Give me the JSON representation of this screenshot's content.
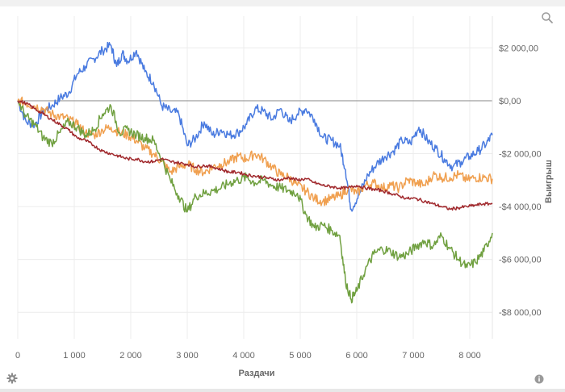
{
  "toolbar": {
    "zoom_icon": "magnifier-icon",
    "settings_icon": "gear-icon",
    "info_icon": "info-icon"
  },
  "chart_data": {
    "type": "line",
    "title": "",
    "xlabel": "Раздачи",
    "ylabel": "Выигрыш",
    "xlim": [
      0,
      8400
    ],
    "ylim": [
      -9000,
      3200
    ],
    "grid": true,
    "legend": "none",
    "x_ticks": [
      {
        "value": 0,
        "label": "0"
      },
      {
        "value": 1000,
        "label": "1 000"
      },
      {
        "value": 2000,
        "label": "2 000"
      },
      {
        "value": 3000,
        "label": "3 000"
      },
      {
        "value": 4000,
        "label": "4 000"
      },
      {
        "value": 5000,
        "label": "5 000"
      },
      {
        "value": 6000,
        "label": "6 000"
      },
      {
        "value": 7000,
        "label": "7 000"
      },
      {
        "value": 8000,
        "label": "8 000"
      }
    ],
    "y_ticks": [
      {
        "value": 2000,
        "label": "$2 000,00"
      },
      {
        "value": 0,
        "label": "$0,00"
      },
      {
        "value": -2000,
        "label": "-$2 000,00"
      },
      {
        "value": -4000,
        "label": "-$4 000,00"
      },
      {
        "value": -6000,
        "label": "-$6 000,00"
      },
      {
        "value": -8000,
        "label": "-$8 000,00"
      }
    ],
    "series": [
      {
        "color": "#4a7be0",
        "x": [
          0,
          150,
          300,
          450,
          600,
          750,
          900,
          1050,
          1200,
          1350,
          1500,
          1650,
          1750,
          1850,
          1950,
          2100,
          2250,
          2400,
          2550,
          2700,
          2850,
          3000,
          3150,
          3300,
          3450,
          3600,
          3750,
          3900,
          4050,
          4200,
          4350,
          4500,
          4650,
          4800,
          4950,
          5100,
          5250,
          5400,
          5550,
          5700,
          5800,
          5900,
          6050,
          6200,
          6350,
          6500,
          6650,
          6800,
          6950,
          7100,
          7250,
          7400,
          7550,
          7700,
          7850,
          8000,
          8150,
          8300,
          8400
        ],
        "y": [
          0,
          -800,
          -900,
          -400,
          -200,
          100,
          300,
          1000,
          1300,
          1600,
          1900,
          2100,
          1300,
          1800,
          1500,
          1900,
          1100,
          700,
          -200,
          -400,
          -500,
          -1700,
          -1400,
          -800,
          -1300,
          -1100,
          -1300,
          -1200,
          -900,
          -300,
          -400,
          -700,
          -300,
          -800,
          -500,
          -300,
          -700,
          -1400,
          -1500,
          -1700,
          -2600,
          -4100,
          -3500,
          -2800,
          -2400,
          -2100,
          -1900,
          -1500,
          -1600,
          -1000,
          -1500,
          -1800,
          -2200,
          -2500,
          -2300,
          -2100,
          -1900,
          -1600,
          -1300
        ]
      },
      {
        "color": "#f0a050",
        "x": [
          0,
          150,
          300,
          450,
          600,
          750,
          900,
          1050,
          1200,
          1350,
          1500,
          1650,
          1800,
          1950,
          2100,
          2250,
          2400,
          2550,
          2700,
          2850,
          3000,
          3150,
          3300,
          3450,
          3600,
          3750,
          3900,
          4050,
          4200,
          4350,
          4500,
          4650,
          4800,
          4950,
          5100,
          5250,
          5400,
          5550,
          5700,
          5850,
          6000,
          6150,
          6300,
          6450,
          6600,
          6750,
          6900,
          7050,
          7200,
          7350,
          7500,
          7650,
          7800,
          7950,
          8100,
          8250,
          8400
        ],
        "y": [
          0,
          -100,
          -200,
          -300,
          -500,
          -600,
          -700,
          -900,
          -1200,
          -1300,
          -1100,
          -1000,
          -1200,
          -1300,
          -1500,
          -1800,
          -2000,
          -2300,
          -2700,
          -2500,
          -2400,
          -2600,
          -2700,
          -2500,
          -2400,
          -2300,
          -2100,
          -2200,
          -2000,
          -2200,
          -2500,
          -2800,
          -2900,
          -3200,
          -3400,
          -3700,
          -3800,
          -3700,
          -3600,
          -3300,
          -3500,
          -3200,
          -3100,
          -3300,
          -3200,
          -3300,
          -3000,
          -3100,
          -3200,
          -2800,
          -2900,
          -2900,
          -2800,
          -3000,
          -2900,
          -2900,
          -2950
        ]
      },
      {
        "color": "#70a040",
        "x": [
          0,
          150,
          300,
          450,
          600,
          750,
          900,
          1050,
          1200,
          1350,
          1500,
          1650,
          1800,
          1950,
          2100,
          2250,
          2400,
          2550,
          2700,
          2850,
          3000,
          3150,
          3300,
          3450,
          3600,
          3750,
          3900,
          4050,
          4200,
          4350,
          4500,
          4650,
          4800,
          4950,
          5100,
          5250,
          5400,
          5550,
          5700,
          5800,
          5900,
          6000,
          6150,
          6300,
          6450,
          6600,
          6750,
          6900,
          7050,
          7200,
          7350,
          7500,
          7650,
          7800,
          7950,
          8100,
          8250,
          8400
        ],
        "y": [
          0,
          -600,
          -900,
          -1400,
          -1600,
          -1200,
          -800,
          -1000,
          -1300,
          -1100,
          -500,
          -200,
          -1200,
          -1100,
          -1300,
          -1400,
          -1500,
          -2200,
          -3000,
          -3600,
          -4200,
          -3600,
          -3500,
          -3400,
          -3300,
          -3100,
          -3000,
          -2900,
          -3100,
          -3000,
          -3200,
          -3300,
          -3400,
          -3500,
          -4300,
          -4800,
          -4700,
          -4900,
          -5100,
          -6800,
          -7500,
          -7200,
          -6400,
          -5800,
          -5600,
          -5700,
          -5900,
          -5800,
          -5500,
          -5300,
          -5500,
          -5100,
          -5600,
          -6000,
          -6300,
          -6100,
          -5700,
          -5000
        ]
      },
      {
        "color": "#a0282c",
        "x": [
          0,
          150,
          300,
          450,
          600,
          750,
          900,
          1050,
          1200,
          1350,
          1500,
          1650,
          1800,
          1950,
          2100,
          2250,
          2400,
          2550,
          2700,
          2850,
          3000,
          3150,
          3300,
          3450,
          3600,
          3750,
          3900,
          4050,
          4200,
          4350,
          4500,
          4650,
          4800,
          4950,
          5100,
          5250,
          5400,
          5550,
          5700,
          5850,
          6000,
          6150,
          6300,
          6450,
          6600,
          6750,
          6900,
          7050,
          7200,
          7350,
          7500,
          7650,
          7800,
          7950,
          8100,
          8250,
          8400
        ],
        "y": [
          0,
          -100,
          -300,
          -500,
          -700,
          -900,
          -1100,
          -1400,
          -1500,
          -1700,
          -1900,
          -2000,
          -2100,
          -2200,
          -2200,
          -2300,
          -2300,
          -2200,
          -2300,
          -2350,
          -2400,
          -2500,
          -2450,
          -2500,
          -2600,
          -2700,
          -2700,
          -2800,
          -2850,
          -2900,
          -2950,
          -3000,
          -2900,
          -3000,
          -2950,
          -3100,
          -3200,
          -3250,
          -3300,
          -3300,
          -3200,
          -3300,
          -3350,
          -3400,
          -3500,
          -3600,
          -3700,
          -3700,
          -3800,
          -3900,
          -4000,
          -4100,
          -4050,
          -4000,
          -3950,
          -3900,
          -3900
        ]
      }
    ]
  }
}
